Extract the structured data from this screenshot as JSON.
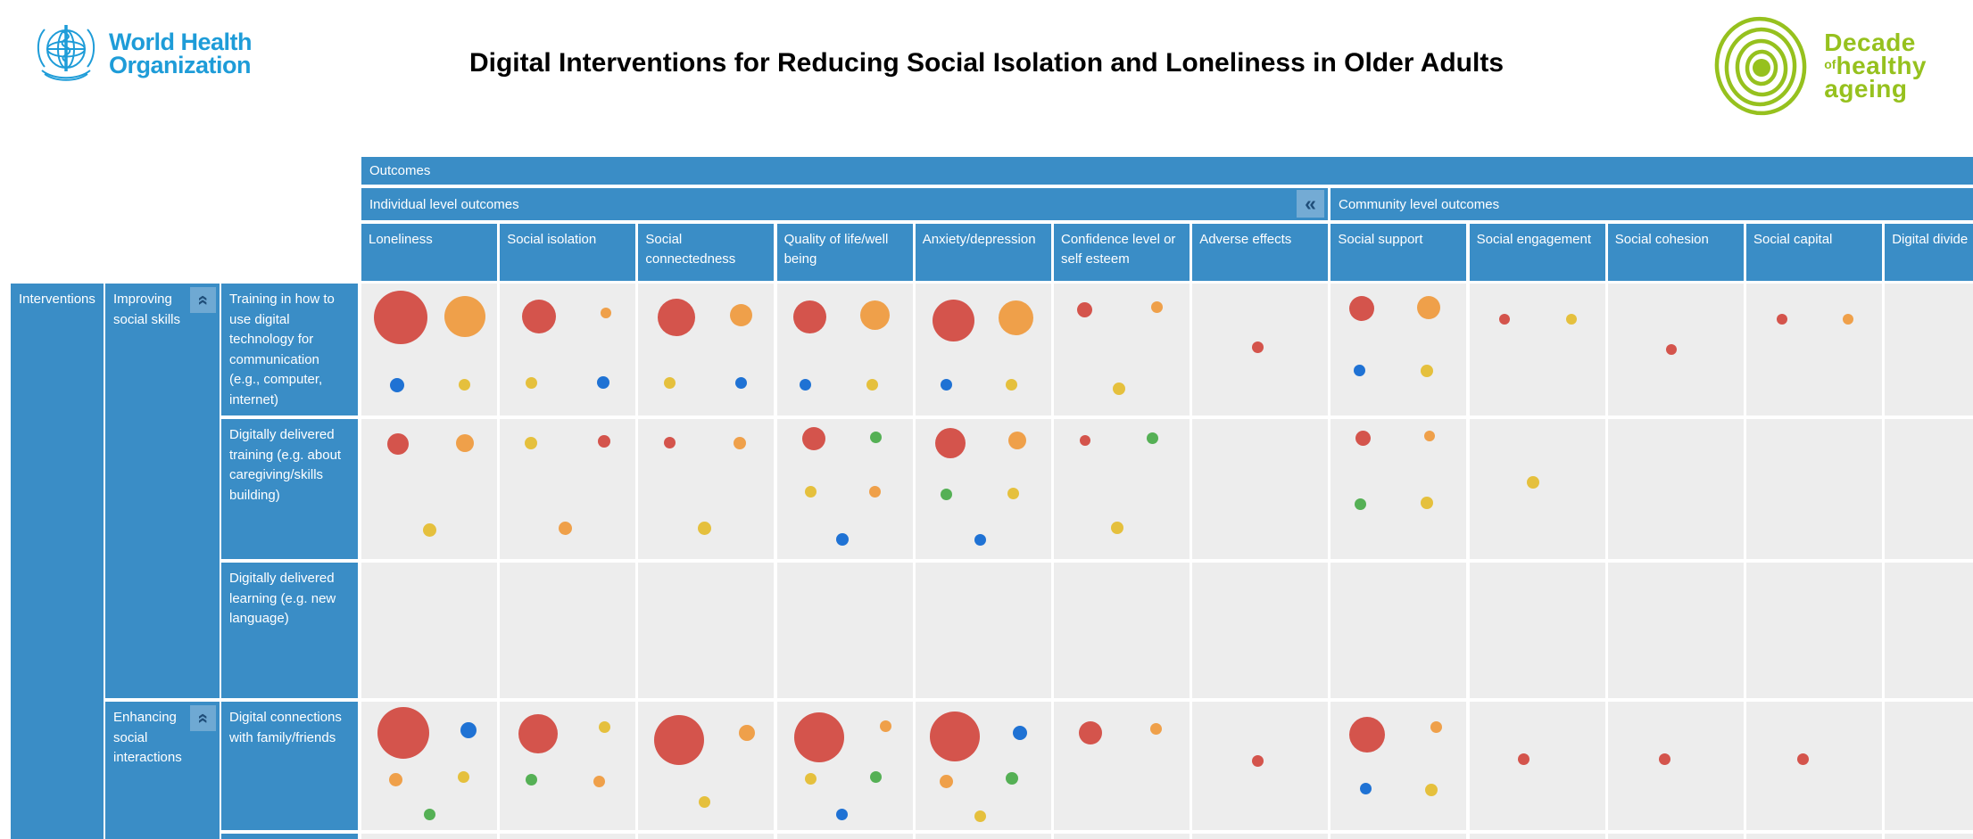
{
  "page": {
    "who_logo": {
      "line1": "World Health",
      "line2": "Organization"
    },
    "title": "Digital Interventions for Reducing Social Isolation and Loneliness in Older Adults",
    "decade_logo": {
      "line1": "Decade",
      "line2_small": "of",
      "line2": "healthy",
      "line3": "ageing"
    }
  },
  "colors": {
    "header_blue": "#3a8dc6",
    "button_blue": "#74abd4",
    "chevron_navy": "#1f4e79",
    "cell_gray": "#ededed",
    "who_blue": "#1e9cd8",
    "decade_green": "#96c11e",
    "bubbles": {
      "red": "#d4544c",
      "orange": "#efa04a",
      "yellow": "#e5c03d",
      "blue": "#1f72d4",
      "green": "#55b055"
    }
  },
  "table": {
    "outcomes_header": "Outcomes",
    "collapse_glyph": "«",
    "sections": [
      {
        "id": "individual",
        "label": "Individual level outcomes"
      },
      {
        "id": "community",
        "label": "Community level outcomes"
      }
    ],
    "columns": [
      {
        "id": "loneliness",
        "label": "Loneliness",
        "section": "individual"
      },
      {
        "id": "social_isolation",
        "label": "Social isolation",
        "section": "individual"
      },
      {
        "id": "social_connectedness",
        "label": "Social connectedness",
        "section": "individual"
      },
      {
        "id": "quality_of_life",
        "label": "Quality of life/well being",
        "section": "individual"
      },
      {
        "id": "anxiety_depression",
        "label": "Anxiety/depression",
        "section": "individual"
      },
      {
        "id": "confidence",
        "label": "Confidence level or self esteem",
        "section": "individual"
      },
      {
        "id": "adverse_effects",
        "label": "Adverse effects",
        "section": "individual"
      },
      {
        "id": "social_support",
        "label": "Social support",
        "section": "community"
      },
      {
        "id": "social_engagement",
        "label": "Social engagement",
        "section": "community"
      },
      {
        "id": "social_cohesion",
        "label": "Social cohesion",
        "section": "community"
      },
      {
        "id": "social_capital",
        "label": "Social capital",
        "section": "community"
      },
      {
        "id": "digital_divide",
        "label": "Digital divide",
        "section": "community"
      }
    ],
    "interventions_header": "Interventions",
    "groups": [
      {
        "id": "improving",
        "label": "Improving social skills"
      },
      {
        "id": "enhancing",
        "label": "Enhancing social interactions"
      }
    ],
    "rows": [
      {
        "id": "training",
        "group": "improving",
        "label": "Training in how to use digital technology for communication (e.g., computer, internet)"
      },
      {
        "id": "dd_training",
        "group": "improving",
        "label": "Digitally delivered training (e.g. about caregiving/skills building)"
      },
      {
        "id": "dd_learning",
        "group": "improving",
        "label": "Digitally delivered learning (e.g. new language)"
      },
      {
        "id": "connections",
        "group": "enhancing",
        "label": "Digital connections with family/friends"
      },
      {
        "id": "next_row_partial",
        "group": "enhancing",
        "label": ""
      }
    ]
  },
  "chart_data": {
    "type": "scatter",
    "subtype": "bubble-matrix evidence gap map",
    "title": "Digital Interventions for Reducing Social Isolation and Loneliness in Older Adults",
    "x_categories": [
      "Loneliness",
      "Social isolation",
      "Social connectedness",
      "Quality of life/well being",
      "Anxiety/depression",
      "Confidence level or self esteem",
      "Adverse effects",
      "Social support",
      "Social engagement",
      "Social cohesion",
      "Social capital",
      "Digital divide"
    ],
    "y_categories": [
      "Training in how to use digital technology for communication (e.g., computer, internet)",
      "Digitally delivered training (e.g. about caregiving/skills building)",
      "Digitally delivered learning (e.g. new language)",
      "Digital connections with family/friends"
    ],
    "legend_visible": false,
    "grid": "matrix of gray cells; bubble color/size encode evidence, legend off-screen",
    "bubble_format": [
      "row_id",
      "column_id",
      "color",
      "diameter_px",
      "cx_pct",
      "cy_pct"
    ],
    "bubbles": [
      [
        "training",
        "loneliness",
        "red",
        60,
        29,
        26
      ],
      [
        "training",
        "loneliness",
        "orange",
        46,
        76,
        25
      ],
      [
        "training",
        "loneliness",
        "blue",
        16,
        26,
        77
      ],
      [
        "training",
        "loneliness",
        "yellow",
        13,
        76,
        77
      ],
      [
        "training",
        "social_isolation",
        "red",
        38,
        29,
        25
      ],
      [
        "training",
        "social_isolation",
        "orange",
        12,
        78,
        22
      ],
      [
        "training",
        "social_isolation",
        "yellow",
        13,
        23,
        75
      ],
      [
        "training",
        "social_isolation",
        "blue",
        14,
        76,
        75
      ],
      [
        "training",
        "social_connectedness",
        "red",
        42,
        28,
        26
      ],
      [
        "training",
        "social_connectedness",
        "orange",
        25,
        76,
        24
      ],
      [
        "training",
        "social_connectedness",
        "yellow",
        13,
        23,
        75
      ],
      [
        "training",
        "social_connectedness",
        "blue",
        13,
        76,
        75
      ],
      [
        "training",
        "quality_of_life",
        "red",
        37,
        24,
        25
      ],
      [
        "training",
        "quality_of_life",
        "orange",
        33,
        72,
        24
      ],
      [
        "training",
        "quality_of_life",
        "blue",
        13,
        21,
        77
      ],
      [
        "training",
        "quality_of_life",
        "yellow",
        13,
        70,
        77
      ],
      [
        "training",
        "anxiety_depression",
        "red",
        47,
        28,
        28
      ],
      [
        "training",
        "anxiety_depression",
        "orange",
        39,
        74,
        26
      ],
      [
        "training",
        "anxiety_depression",
        "blue",
        13,
        23,
        77
      ],
      [
        "training",
        "anxiety_depression",
        "yellow",
        13,
        71,
        77
      ],
      [
        "training",
        "confidence",
        "red",
        17,
        23,
        20
      ],
      [
        "training",
        "confidence",
        "orange",
        13,
        76,
        18
      ],
      [
        "training",
        "confidence",
        "yellow",
        14,
        48,
        80
      ],
      [
        "training",
        "adverse_effects",
        "red",
        13,
        48,
        48
      ],
      [
        "training",
        "social_support",
        "red",
        28,
        23,
        19
      ],
      [
        "training",
        "social_support",
        "orange",
        26,
        72,
        18
      ],
      [
        "training",
        "social_support",
        "blue",
        13,
        21,
        66
      ],
      [
        "training",
        "social_support",
        "yellow",
        14,
        71,
        66
      ],
      [
        "training",
        "social_engagement",
        "red",
        12,
        26,
        27
      ],
      [
        "training",
        "social_engagement",
        "yellow",
        12,
        75,
        27
      ],
      [
        "training",
        "social_cohesion",
        "red",
        12,
        47,
        50
      ],
      [
        "training",
        "social_capital",
        "red",
        12,
        26,
        27
      ],
      [
        "training",
        "social_capital",
        "orange",
        12,
        75,
        27
      ],
      [
        "dd_training",
        "loneliness",
        "red",
        24,
        27,
        18
      ],
      [
        "dd_training",
        "loneliness",
        "orange",
        20,
        76,
        17
      ],
      [
        "dd_training",
        "loneliness",
        "yellow",
        15,
        50,
        79
      ],
      [
        "dd_training",
        "social_isolation",
        "yellow",
        14,
        23,
        17
      ],
      [
        "dd_training",
        "social_isolation",
        "red",
        14,
        77,
        16
      ],
      [
        "dd_training",
        "social_isolation",
        "orange",
        15,
        48,
        78
      ],
      [
        "dd_training",
        "social_connectedness",
        "red",
        13,
        23,
        17
      ],
      [
        "dd_training",
        "social_connectedness",
        "orange",
        14,
        75,
        17
      ],
      [
        "dd_training",
        "social_connectedness",
        "yellow",
        15,
        49,
        78
      ],
      [
        "dd_training",
        "quality_of_life",
        "red",
        26,
        27,
        14
      ],
      [
        "dd_training",
        "quality_of_life",
        "green",
        13,
        73,
        13
      ],
      [
        "dd_training",
        "quality_of_life",
        "yellow",
        13,
        25,
        52
      ],
      [
        "dd_training",
        "quality_of_life",
        "orange",
        13,
        72,
        52
      ],
      [
        "dd_training",
        "quality_of_life",
        "blue",
        14,
        48,
        86
      ],
      [
        "dd_training",
        "anxiety_depression",
        "red",
        34,
        26,
        17
      ],
      [
        "dd_training",
        "anxiety_depression",
        "orange",
        20,
        75,
        15
      ],
      [
        "dd_training",
        "anxiety_depression",
        "green",
        13,
        23,
        54
      ],
      [
        "dd_training",
        "anxiety_depression",
        "yellow",
        13,
        72,
        53
      ],
      [
        "dd_training",
        "anxiety_depression",
        "blue",
        13,
        48,
        86
      ],
      [
        "dd_training",
        "confidence",
        "red",
        12,
        23,
        15
      ],
      [
        "dd_training",
        "confidence",
        "green",
        13,
        73,
        14
      ],
      [
        "dd_training",
        "confidence",
        "yellow",
        14,
        47,
        78
      ],
      [
        "dd_training",
        "social_support",
        "red",
        17,
        24,
        14
      ],
      [
        "dd_training",
        "social_support",
        "orange",
        12,
        73,
        12
      ],
      [
        "dd_training",
        "social_support",
        "green",
        13,
        22,
        61
      ],
      [
        "dd_training",
        "social_support",
        "yellow",
        14,
        71,
        60
      ],
      [
        "dd_training",
        "social_engagement",
        "yellow",
        14,
        47,
        45
      ],
      [
        "connections",
        "loneliness",
        "red",
        58,
        31,
        24
      ],
      [
        "connections",
        "loneliness",
        "blue",
        18,
        79,
        22
      ],
      [
        "connections",
        "loneliness",
        "orange",
        15,
        25,
        61
      ],
      [
        "connections",
        "loneliness",
        "yellow",
        13,
        75,
        59
      ],
      [
        "connections",
        "loneliness",
        "green",
        13,
        50,
        88
      ],
      [
        "connections",
        "social_isolation",
        "red",
        44,
        28,
        25
      ],
      [
        "connections",
        "social_isolation",
        "yellow",
        13,
        77,
        20
      ],
      [
        "connections",
        "social_isolation",
        "green",
        13,
        23,
        61
      ],
      [
        "connections",
        "social_isolation",
        "orange",
        13,
        73,
        62
      ],
      [
        "connections",
        "social_connectedness",
        "red",
        56,
        30,
        30
      ],
      [
        "connections",
        "social_connectedness",
        "orange",
        18,
        80,
        24
      ],
      [
        "connections",
        "social_connectedness",
        "yellow",
        13,
        49,
        78
      ],
      [
        "connections",
        "quality_of_life",
        "red",
        56,
        31,
        28
      ],
      [
        "connections",
        "quality_of_life",
        "orange",
        13,
        80,
        19
      ],
      [
        "connections",
        "quality_of_life",
        "yellow",
        13,
        25,
        60
      ],
      [
        "connections",
        "quality_of_life",
        "green",
        13,
        73,
        59
      ],
      [
        "connections",
        "quality_of_life",
        "blue",
        13,
        48,
        88
      ],
      [
        "connections",
        "anxiety_depression",
        "red",
        56,
        29,
        27
      ],
      [
        "connections",
        "anxiety_depression",
        "blue",
        16,
        77,
        24
      ],
      [
        "connections",
        "anxiety_depression",
        "orange",
        15,
        23,
        62
      ],
      [
        "connections",
        "anxiety_depression",
        "green",
        14,
        71,
        60
      ],
      [
        "connections",
        "anxiety_depression",
        "yellow",
        13,
        48,
        89
      ],
      [
        "connections",
        "confidence",
        "red",
        26,
        27,
        24
      ],
      [
        "connections",
        "confidence",
        "orange",
        13,
        75,
        21
      ],
      [
        "connections",
        "adverse_effects",
        "red",
        13,
        48,
        46
      ],
      [
        "connections",
        "social_support",
        "red",
        40,
        27,
        26
      ],
      [
        "connections",
        "social_support",
        "orange",
        13,
        78,
        20
      ],
      [
        "connections",
        "social_support",
        "blue",
        13,
        26,
        68
      ],
      [
        "connections",
        "social_support",
        "yellow",
        14,
        74,
        69
      ],
      [
        "connections",
        "social_engagement",
        "red",
        13,
        40,
        45
      ],
      [
        "connections",
        "social_cohesion",
        "red",
        13,
        42,
        45
      ],
      [
        "connections",
        "social_capital",
        "red",
        13,
        42,
        45
      ]
    ]
  }
}
